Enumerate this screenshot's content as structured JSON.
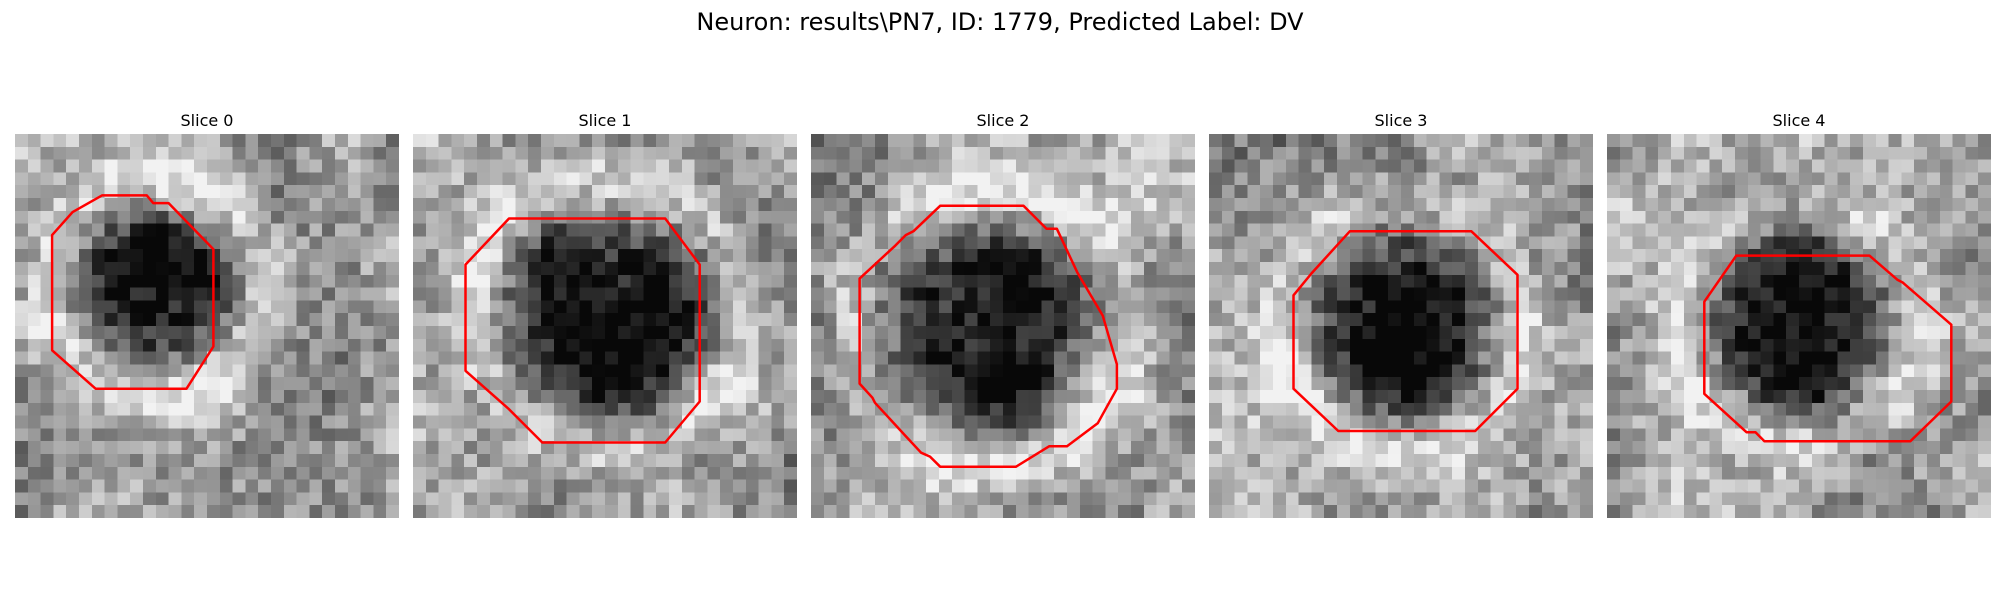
{
  "figure": {
    "title": "Neuron: results\\PN7, ID: 1779, Predicted Label: DV"
  },
  "slices": [
    {
      "title": "Slice 0"
    },
    {
      "title": "Slice 1"
    },
    {
      "title": "Slice 2"
    },
    {
      "title": "Slice 3"
    },
    {
      "title": "Slice 4"
    }
  ],
  "colors": {
    "contour": "#ff0000",
    "background": "#ffffff"
  }
}
